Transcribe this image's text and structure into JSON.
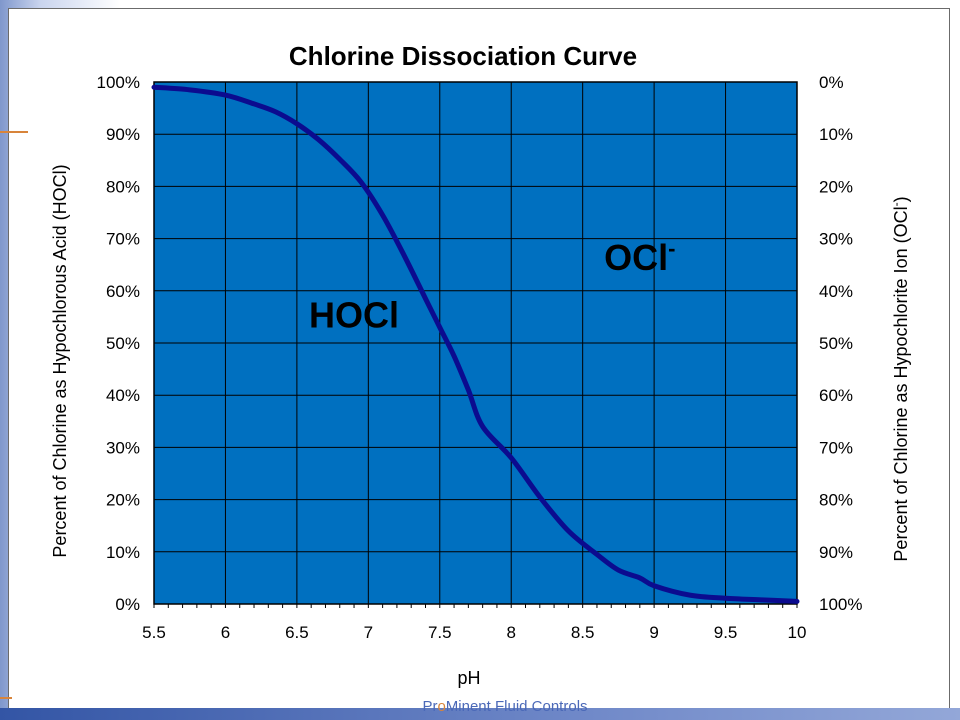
{
  "slide": {
    "footer": {
      "part1": "Pr",
      "part2": "o",
      "part3": "Minent Fluid Controls"
    }
  },
  "chart_data": {
    "type": "line",
    "title": "Chlorine Dissociation Curve",
    "xlabel": "pH",
    "ylabel": "Percent of Chlorine as Hypochlorous Acid (HOCl)",
    "ylabel_right": {
      "text": "Percent of Chlorine as Hypochlorite Ion (OCl",
      "superscript": "-",
      "close": ")"
    },
    "xlim": [
      5.5,
      10
    ],
    "ylim": [
      0,
      100
    ],
    "x_ticks": [
      "5.5",
      "6",
      "6.5",
      "7",
      "7.5",
      "8",
      "8.5",
      "9",
      "9.5",
      "10"
    ],
    "y_ticks_left": [
      "0%",
      "10%",
      "20%",
      "30%",
      "40%",
      "50%",
      "60%",
      "70%",
      "80%",
      "90%",
      "100%"
    ],
    "y_ticks_right": [
      "100%",
      "90%",
      "80%",
      "70%",
      "60%",
      "50%",
      "40%",
      "30%",
      "20%",
      "10%",
      "0%"
    ],
    "annotations": [
      {
        "text": "HOCl",
        "x": 6.9,
        "y": 53
      },
      {
        "text": "OCl",
        "superscript": "-",
        "x": 8.9,
        "y": 64
      }
    ],
    "grid": true,
    "colors": {
      "plot_bg": "#0070c0",
      "grid": "#000000",
      "line": "#0b0b8f"
    },
    "series": [
      {
        "x": [
          5.5,
          5.75,
          6.0,
          6.2,
          6.35,
          6.5,
          6.65,
          6.8,
          6.95,
          7.1,
          7.25,
          7.4,
          7.5,
          7.6,
          7.7,
          7.8,
          8.0,
          8.2,
          8.4,
          8.6,
          8.75,
          8.9,
          9.0,
          9.25,
          9.5,
          9.75,
          10.0
        ],
        "values": [
          99,
          98.5,
          97.5,
          95.8,
          94.3,
          92,
          89,
          85.2,
          80.8,
          74.5,
          66.8,
          58.5,
          53,
          47.5,
          41,
          34,
          28,
          20.5,
          14,
          9.5,
          6.5,
          5,
          3.5,
          1.7,
          1.1,
          0.8,
          0.5
        ]
      }
    ]
  }
}
